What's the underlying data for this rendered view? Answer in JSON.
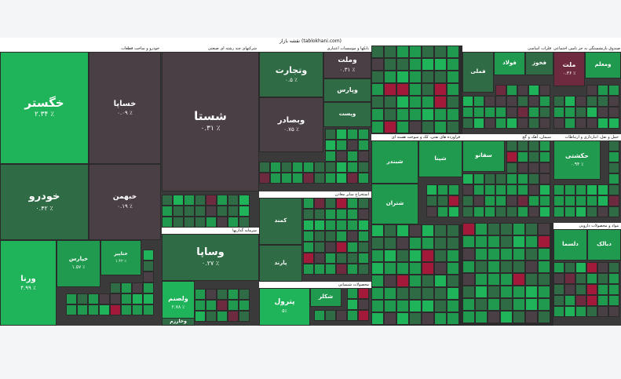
{
  "colors": {
    "up_strong": "#1fb35a",
    "up_mid": "#1f9a4f",
    "up_weak": "#2f6b45",
    "flat": "#4b3f46",
    "down": "#a3193a",
    "down_weak": "#6e2a3f",
    "background": "#2b2b2b"
  },
  "map_title": "نقشه بازار (tablokhani.com)",
  "chart_data": {
    "type": "treemap",
    "value_unit": "%",
    "sectors": [
      {
        "name": "خودرو و ساخت قطعات",
        "stocks": [
          {
            "name": "خگستر",
            "change": "۲.۳۴ ٪",
            "level": "up_strong"
          },
          {
            "name": "خساپا",
            "change": "۰.۰۹ ٪",
            "level": "flat"
          },
          {
            "name": "خودرو",
            "change": "۰.۴۲ ٪",
            "level": "up_weak"
          },
          {
            "name": "خبهمن",
            "change": "۰.۱۹ ٪",
            "level": "flat"
          },
          {
            "name": "ورنا",
            "change": "۴.۹۹ ٪",
            "level": "up_strong"
          },
          {
            "name": "خپارس",
            "change": "۱.۵۷ ٪",
            "level": "up_mid"
          },
          {
            "name": "ختاپیر",
            "change": "۱.۴۲ ٪",
            "level": "up_mid"
          }
        ]
      },
      {
        "name": "شرکتهای چند رشته ای صنعتی",
        "stocks": [
          {
            "name": "شستا",
            "change": "۰.۳۱ ٪",
            "level": "flat"
          }
        ]
      },
      {
        "name": "بانکها و موسسات اعتباری",
        "stocks": [
          {
            "name": "وتجارت",
            "change": "۰.۵ ٪",
            "level": "up_weak"
          },
          {
            "name": "وبصادر",
            "change": "۰.۷۵ ٪",
            "level": "flat"
          },
          {
            "name": "وملت",
            "change": "۰.۳۱ ٪",
            "level": "flat"
          },
          {
            "name": "وپارس",
            "change": "",
            "level": "up_weak"
          },
          {
            "name": "وپست",
            "change": "",
            "level": "up_weak"
          }
        ]
      },
      {
        "name": "سرمایه گذاریها",
        "stocks": [
          {
            "name": "وساپا",
            "change": "۰.۲۷ ٪",
            "level": "up_weak"
          },
          {
            "name": "ولصنم",
            "change": "۲.۷۸ ٪",
            "level": "up_strong"
          },
          {
            "name": "وخارزم",
            "change": "",
            "level": "up_weak"
          }
        ]
      },
      {
        "name": "استخراج سایر معادن",
        "stocks": [
          {
            "name": "کمند",
            "change": "",
            "level": "up_weak"
          },
          {
            "name": "پارند",
            "change": "",
            "level": "up_weak"
          }
        ]
      },
      {
        "name": "محصولات شیمیایی",
        "stocks": [
          {
            "name": "پترول",
            "change": "۵٪",
            "level": "up_strong"
          },
          {
            "name": "شکلر",
            "change": "",
            "level": "up_mid"
          }
        ]
      },
      {
        "name": "فلزات اساسی",
        "stocks": [
          {
            "name": "فملی",
            "change": "",
            "level": "up_weak"
          },
          {
            "name": "فولاد",
            "change": "",
            "level": "up_mid"
          },
          {
            "name": "فخوز",
            "change": "",
            "level": "up_weak"
          }
        ]
      },
      {
        "name": "بیمه و صندوق بازنشستگی به جز تامین اجتماعی",
        "stocks": [
          {
            "name": "ملت",
            "change": "۰.۳۶ ٪",
            "level": "down_weak"
          },
          {
            "name": "ومعلم",
            "change": "",
            "level": "up_mid"
          }
        ]
      },
      {
        "name": "فراورده های نفتی، کک و سوخت هسته ای",
        "stocks": [
          {
            "name": "شبندر",
            "change": "",
            "level": "up_mid"
          },
          {
            "name": "شتران",
            "change": "",
            "level": "up_mid"
          },
          {
            "name": "شپنا",
            "change": "",
            "level": "up_mid"
          }
        ]
      },
      {
        "name": "حمل و نقل، انبارداری و ارتباطات",
        "stocks": [
          {
            "name": "حکشتی",
            "change": "۰.۹۴ ٪",
            "level": "up_mid"
          }
        ]
      },
      {
        "name": "سیمان، آهک و گچ",
        "stocks": [
          {
            "name": "سفانو",
            "change": "",
            "level": "up_mid"
          }
        ]
      },
      {
        "name": "مواد و محصولات دارویی",
        "stocks": [
          {
            "name": "دلسما",
            "change": "",
            "level": "up_mid"
          },
          {
            "name": "دبالک",
            "change": "",
            "level": "up_mid"
          }
        ]
      }
    ]
  }
}
